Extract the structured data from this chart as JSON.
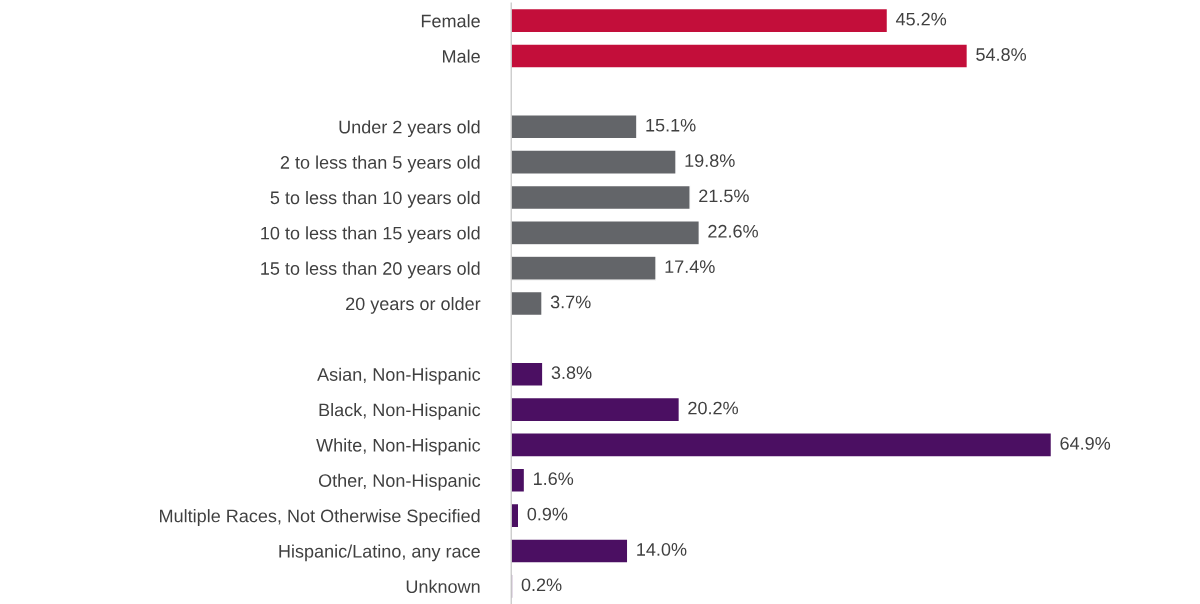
{
  "chart_data": {
    "type": "bar",
    "orientation": "horizontal",
    "categories": [
      "Female",
      "Male",
      null,
      "Under 2 years old",
      "2 to less than 5 years old",
      "5 to less than 10 years old",
      "10 to less than 15 years old",
      "15 to less than 20 years old",
      "20 years or older",
      null,
      "Asian, Non-Hispanic",
      "Black, Non-Hispanic",
      "White, Non-Hispanic",
      "Other, Non-Hispanic",
      "Multiple Races, Not Otherwise Specified",
      "Hispanic/Latino, any race",
      "Unknown"
    ],
    "values": [
      45.2,
      54.8,
      null,
      15.1,
      19.8,
      21.5,
      22.6,
      17.4,
      3.7,
      null,
      3.8,
      20.2,
      64.9,
      1.6,
      0.9,
      14.0,
      0.2
    ],
    "value_labels": [
      "45.2%",
      "54.8%",
      null,
      "15.1%",
      "19.8%",
      "21.5%",
      "22.6%",
      "17.4%",
      "3.7%",
      null,
      "3.8%",
      "20.2%",
      "64.9%",
      "1.6%",
      "0.9%",
      "14.0%",
      "0.2%"
    ],
    "colors": [
      "#c30e3a",
      "#c30e3a",
      null,
      "#636569",
      "#636569",
      "#636569",
      "#636569",
      "#636569",
      "#636569",
      null,
      "#4b0f62",
      "#4b0f62",
      "#4b0f62",
      "#4b0f62",
      "#4b0f62",
      "#4b0f62",
      "#4b0f62"
    ]
  }
}
